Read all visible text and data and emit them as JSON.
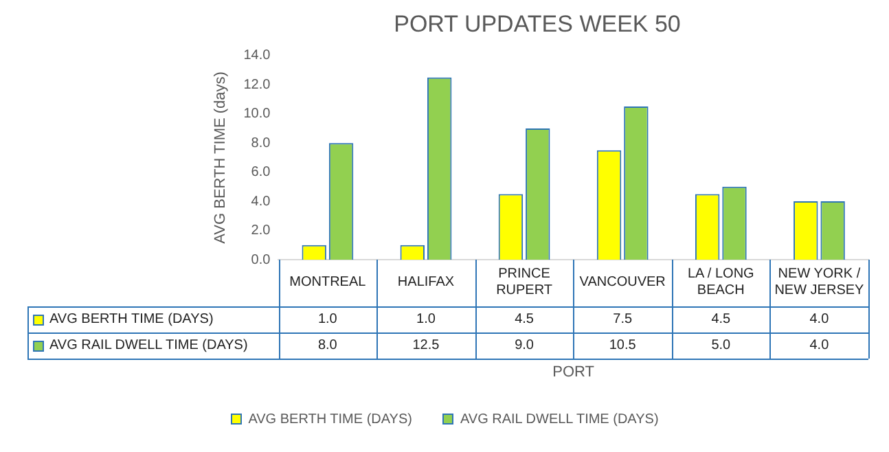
{
  "chart_data": {
    "type": "bar",
    "title": "PORT UPDATES WEEK 50",
    "xlabel": "PORT",
    "ylabel": "AVG BERTH TIME (days)",
    "categories": [
      "MONTREAL",
      "HALIFAX",
      "PRINCE RUPERT",
      "VANCOUVER",
      "LA / LONG BEACH",
      "NEW YORK / NEW JERSEY"
    ],
    "series": [
      {
        "name": "AVG BERTH TIME (DAYS)",
        "color": "#ffff00",
        "values": [
          1.0,
          1.0,
          4.5,
          7.5,
          4.5,
          4.0
        ],
        "value_labels": [
          "1.0",
          "1.0",
          "4.5",
          "7.5",
          "4.5",
          "4.0"
        ]
      },
      {
        "name": "AVG RAIL DWELL TIME (DAYS)",
        "color": "#92d050",
        "values": [
          8.0,
          12.5,
          9.0,
          10.5,
          5.0,
          4.0
        ],
        "value_labels": [
          "8.0",
          "12.5",
          "9.0",
          "10.5",
          "5.0",
          "4.0"
        ]
      }
    ],
    "ylim": [
      0,
      14
    ],
    "yticks": [
      {
        "value": 0,
        "label": "0.0"
      },
      {
        "value": 2,
        "label": "2.0"
      },
      {
        "value": 4,
        "label": "4.0"
      },
      {
        "value": 6,
        "label": "6.0"
      },
      {
        "value": 8,
        "label": "8.0"
      },
      {
        "value": 10,
        "label": "10.0"
      },
      {
        "value": 12,
        "label": "12.0"
      },
      {
        "value": 14,
        "label": "14.0"
      }
    ],
    "grid": false,
    "legend": "bottom"
  }
}
